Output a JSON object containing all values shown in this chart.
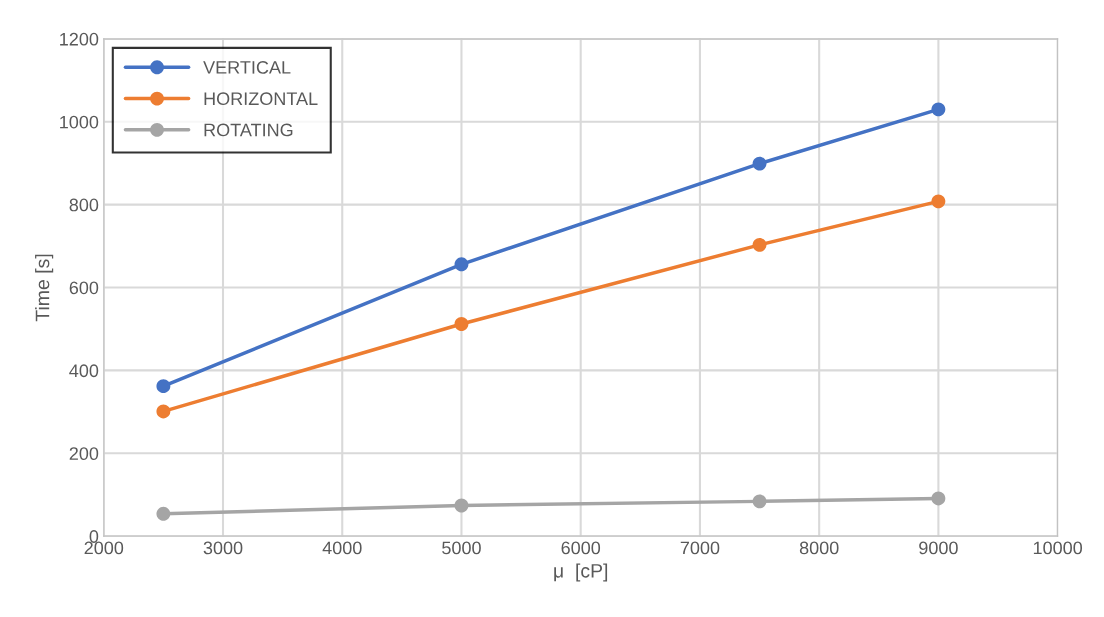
{
  "chart_data": {
    "type": "line",
    "xlabel": "μ  [cP]",
    "ylabel": "Time [s]",
    "x": [
      2500,
      5000,
      7500,
      9000
    ],
    "series": [
      {
        "name": "VERTICAL",
        "color": "#4472c4",
        "values": [
          362,
          656,
          899,
          1030
        ]
      },
      {
        "name": "HORIZONTAL",
        "color": "#ed7d31",
        "values": [
          301,
          512,
          703,
          808
        ]
      },
      {
        "name": "ROTATING",
        "color": "#a5a5a5",
        "values": [
          54,
          74,
          84,
          91
        ]
      }
    ],
    "xlim": [
      2000,
      10000
    ],
    "xticks": [
      2000,
      3000,
      4000,
      5000,
      6000,
      7000,
      8000,
      9000,
      10000
    ],
    "ylim": [
      0,
      1200
    ],
    "yticks": [
      0,
      200,
      400,
      600,
      800,
      1000,
      1200
    ],
    "grid": true,
    "legend": "top left",
    "marker": "circle",
    "line_style": "solid"
  }
}
